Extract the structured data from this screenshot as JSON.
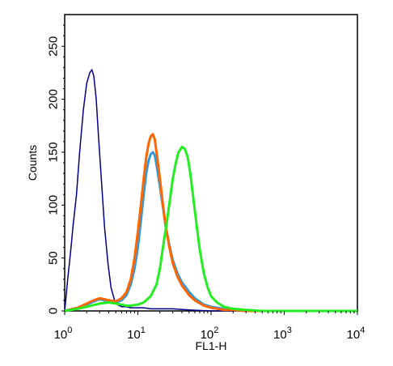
{
  "chart_data": {
    "type": "line",
    "xlabel": "FL1-H",
    "ylabel": "Counts",
    "x_scale": "log",
    "xlim": [
      1,
      10000
    ],
    "ylim": [
      0,
      280
    ],
    "y_ticks": [
      0,
      50,
      100,
      150,
      200,
      250
    ],
    "x_ticks": [
      {
        "base": "10",
        "exp": "0"
      },
      {
        "base": "10",
        "exp": "1"
      },
      {
        "base": "10",
        "exp": "2"
      },
      {
        "base": "10",
        "exp": "3"
      },
      {
        "base": "10",
        "exp": "4"
      }
    ],
    "grid": false,
    "series": [
      {
        "color": "#00008b",
        "x": [
          1,
          1.05,
          1.1,
          1.2,
          1.3,
          1.45,
          1.6,
          1.8,
          2.0,
          2.2,
          2.35,
          2.5,
          2.7,
          2.9,
          3.2,
          3.5,
          3.9,
          4.3,
          4.8,
          5.3,
          6,
          7,
          8,
          10,
          12,
          15,
          20,
          30,
          50,
          100,
          1000,
          10000
        ],
        "y": [
          0,
          15,
          30,
          55,
          80,
          110,
          150,
          190,
          215,
          225,
          228,
          222,
          200,
          165,
          120,
          80,
          45,
          22,
          10,
          6,
          4,
          4,
          3,
          3,
          3,
          2,
          2,
          2,
          1,
          0,
          0,
          0
        ]
      },
      {
        "color": "#3399dd",
        "x": [
          1,
          1.5,
          2,
          2.5,
          3,
          3.5,
          4,
          5,
          6,
          7,
          8,
          9,
          10,
          11,
          12,
          13,
          14,
          15,
          16,
          17,
          18,
          20,
          22,
          24,
          27,
          30,
          35,
          40,
          50,
          60,
          80,
          100,
          150,
          200,
          300,
          1000,
          10000
        ],
        "y": [
          0,
          3,
          6,
          9,
          11,
          10,
          9,
          8,
          10,
          15,
          25,
          40,
          60,
          85,
          110,
          130,
          142,
          148,
          150,
          147,
          138,
          118,
          98,
          80,
          62,
          48,
          35,
          27,
          18,
          12,
          6,
          4,
          2,
          1,
          0,
          0,
          0
        ]
      },
      {
        "color": "#ff6600",
        "x": [
          1,
          1.5,
          2,
          2.5,
          3,
          3.5,
          4,
          5,
          6,
          7,
          8,
          9,
          10,
          11,
          12,
          13,
          14,
          15,
          16,
          17,
          18,
          20,
          22,
          24,
          27,
          30,
          35,
          40,
          50,
          60,
          80,
          100,
          150,
          200,
          300,
          1000,
          10000
        ],
        "y": [
          0,
          3,
          7,
          10,
          12,
          11,
          10,
          9,
          12,
          18,
          30,
          50,
          75,
          100,
          125,
          145,
          158,
          165,
          167,
          162,
          150,
          125,
          100,
          80,
          60,
          45,
          32,
          24,
          15,
          10,
          5,
          3,
          1,
          1,
          0,
          0,
          0
        ]
      },
      {
        "color": "#22ee22",
        "x": [
          1,
          1.5,
          2,
          3,
          4,
          5,
          6,
          7,
          8,
          10,
          12,
          15,
          18,
          20,
          22,
          25,
          28,
          30,
          33,
          36,
          40,
          44,
          48,
          52,
          56,
          60,
          65,
          70,
          80,
          90,
          100,
          120,
          150,
          200,
          300,
          500,
          1000,
          10000
        ],
        "y": [
          0,
          2,
          4,
          7,
          8,
          7,
          6,
          5,
          5,
          6,
          8,
          14,
          25,
          40,
          60,
          85,
          110,
          125,
          140,
          150,
          155,
          153,
          145,
          130,
          112,
          95,
          75,
          58,
          35,
          22,
          14,
          8,
          4,
          2,
          1,
          0,
          0,
          0
        ]
      }
    ]
  }
}
